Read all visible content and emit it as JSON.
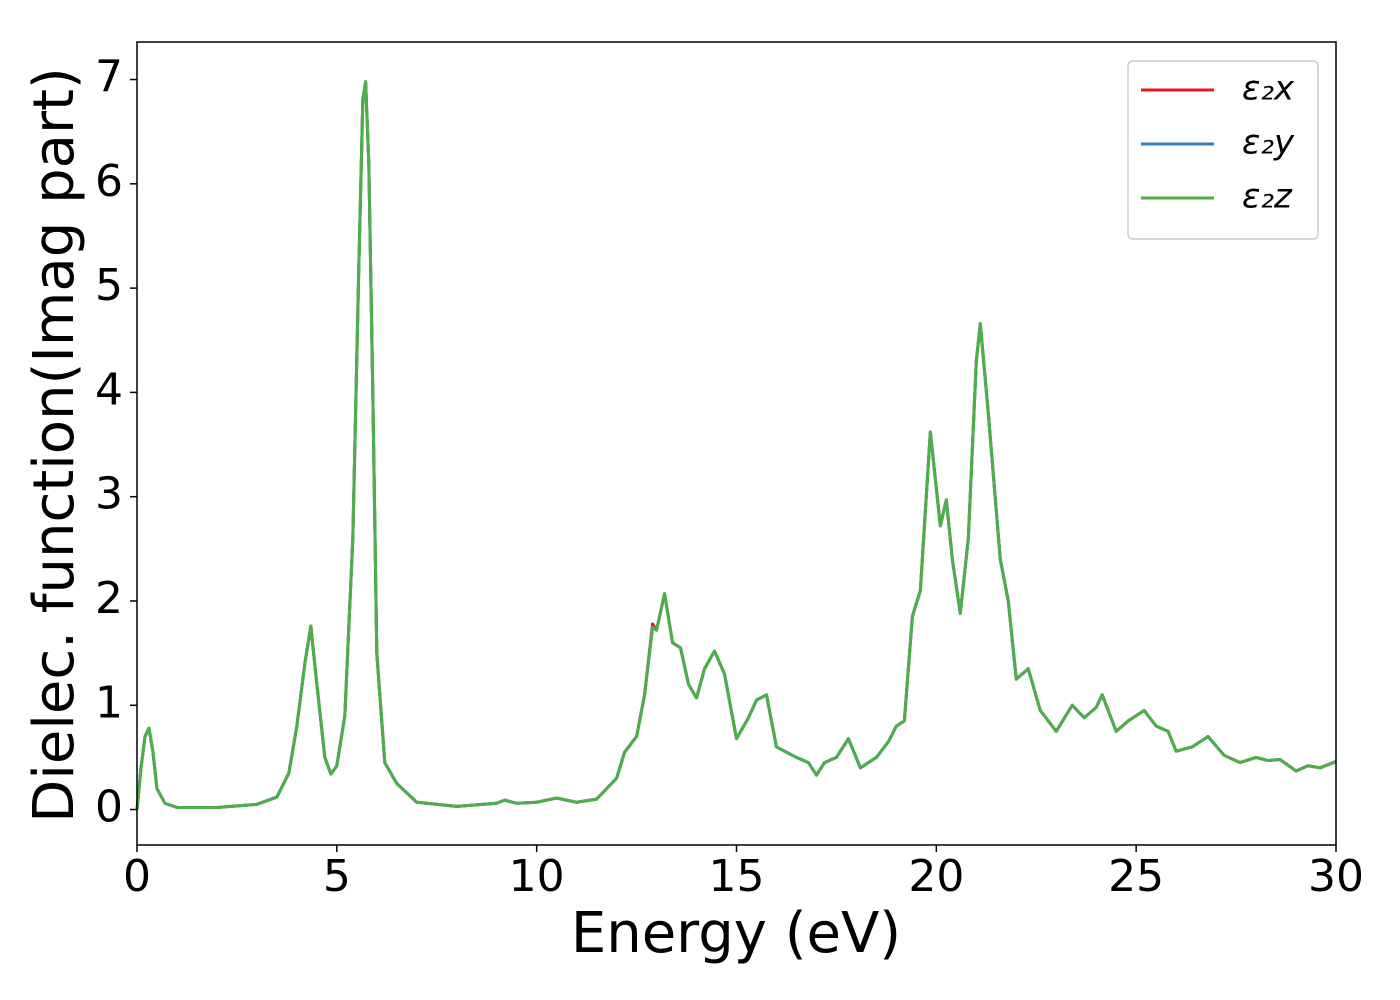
{
  "chart_data": {
    "type": "line",
    "xlabel": "Energy (eV)",
    "ylabel": "Dielec. function(Imag part)",
    "x": [
      0,
      0.1,
      0.2,
      0.3,
      0.4,
      0.5,
      0.7,
      1,
      2,
      3,
      3.5,
      3.8,
      4.0,
      4.2,
      4.35,
      4.5,
      4.7,
      4.85,
      5.0,
      5.2,
      5.4,
      5.55,
      5.65,
      5.72,
      5.8,
      5.9,
      6.0,
      6.2,
      6.5,
      7,
      8,
      9,
      9.2,
      9.5,
      10,
      10.5,
      11,
      11.5,
      12,
      12.2,
      12.5,
      12.7,
      12.9,
      13.0,
      13.2,
      13.4,
      13.6,
      13.8,
      14.0,
      14.2,
      14.45,
      14.7,
      15.0,
      15.3,
      15.5,
      15.75,
      16,
      16.5,
      16.8,
      17.0,
      17.2,
      17.5,
      17.8,
      18.1,
      18.5,
      18.8,
      19.0,
      19.2,
      19.4,
      19.6,
      19.85,
      20.1,
      20.25,
      20.4,
      20.6,
      20.8,
      21.0,
      21.1,
      21.3,
      21.6,
      21.8,
      22.0,
      22.3,
      22.6,
      23.0,
      23.4,
      23.7,
      24.0,
      24.15,
      24.5,
      24.8,
      25.2,
      25.5,
      25.8,
      26.0,
      26.4,
      26.8,
      27.2,
      27.6,
      28.0,
      28.3,
      28.6,
      29.0,
      29.3,
      29.6,
      30
    ],
    "series": [
      {
        "name": "ε₂x",
        "color": "#e41a1c",
        "values": [
          0,
          0.4,
          0.7,
          0.78,
          0.55,
          0.2,
          0.06,
          0.02,
          0.02,
          0.05,
          0.12,
          0.35,
          0.8,
          1.4,
          1.76,
          1.2,
          0.5,
          0.34,
          0.42,
          0.9,
          2.6,
          5.2,
          6.8,
          6.98,
          6.2,
          4.0,
          1.5,
          0.45,
          0.25,
          0.07,
          0.03,
          0.06,
          0.09,
          0.06,
          0.07,
          0.11,
          0.07,
          0.1,
          0.3,
          0.55,
          0.7,
          1.1,
          1.78,
          1.72,
          2.07,
          1.6,
          1.55,
          1.2,
          1.07,
          1.35,
          1.52,
          1.3,
          0.68,
          0.88,
          1.05,
          1.1,
          0.6,
          0.5,
          0.45,
          0.33,
          0.45,
          0.5,
          0.68,
          0.4,
          0.5,
          0.65,
          0.8,
          0.85,
          1.85,
          2.1,
          3.62,
          2.72,
          2.97,
          2.4,
          1.88,
          2.6,
          4.3,
          4.66,
          3.8,
          2.4,
          2.0,
          1.25,
          1.35,
          0.95,
          0.75,
          1.0,
          0.88,
          0.98,
          1.1,
          0.75,
          0.85,
          0.95,
          0.8,
          0.75,
          0.56,
          0.6,
          0.7,
          0.52,
          0.45,
          0.5,
          0.47,
          0.48,
          0.37,
          0.42,
          0.4,
          0.46
        ]
      },
      {
        "name": "ε₂y",
        "color": "#377eb8",
        "values": [
          0,
          0.4,
          0.7,
          0.78,
          0.55,
          0.2,
          0.06,
          0.02,
          0.02,
          0.05,
          0.12,
          0.35,
          0.8,
          1.4,
          1.76,
          1.2,
          0.5,
          0.34,
          0.42,
          0.9,
          2.6,
          5.2,
          6.8,
          6.98,
          6.2,
          4.0,
          1.5,
          0.45,
          0.25,
          0.07,
          0.03,
          0.06,
          0.09,
          0.06,
          0.07,
          0.11,
          0.07,
          0.1,
          0.3,
          0.55,
          0.7,
          1.1,
          1.75,
          1.72,
          2.07,
          1.6,
          1.55,
          1.2,
          1.07,
          1.35,
          1.52,
          1.3,
          0.68,
          0.88,
          1.05,
          1.1,
          0.6,
          0.5,
          0.45,
          0.33,
          0.45,
          0.5,
          0.68,
          0.4,
          0.5,
          0.65,
          0.8,
          0.85,
          1.85,
          2.1,
          3.62,
          2.72,
          2.97,
          2.4,
          1.88,
          2.6,
          4.3,
          4.66,
          3.8,
          2.4,
          2.0,
          1.25,
          1.35,
          0.95,
          0.75,
          1.0,
          0.88,
          0.98,
          1.1,
          0.75,
          0.85,
          0.95,
          0.8,
          0.75,
          0.56,
          0.6,
          0.7,
          0.52,
          0.45,
          0.5,
          0.47,
          0.48,
          0.37,
          0.42,
          0.4,
          0.46
        ]
      },
      {
        "name": "ε₂z",
        "color": "#4daf4a",
        "values": [
          0,
          0.4,
          0.7,
          0.78,
          0.55,
          0.2,
          0.06,
          0.02,
          0.02,
          0.05,
          0.12,
          0.35,
          0.8,
          1.4,
          1.76,
          1.2,
          0.5,
          0.34,
          0.42,
          0.9,
          2.6,
          5.2,
          6.8,
          6.98,
          6.2,
          4.0,
          1.5,
          0.45,
          0.25,
          0.07,
          0.03,
          0.06,
          0.09,
          0.06,
          0.07,
          0.11,
          0.07,
          0.1,
          0.3,
          0.55,
          0.7,
          1.1,
          1.75,
          1.72,
          2.07,
          1.6,
          1.55,
          1.2,
          1.07,
          1.35,
          1.52,
          1.3,
          0.68,
          0.88,
          1.05,
          1.1,
          0.6,
          0.5,
          0.45,
          0.33,
          0.45,
          0.5,
          0.68,
          0.4,
          0.5,
          0.65,
          0.8,
          0.85,
          1.85,
          2.1,
          3.62,
          2.72,
          2.97,
          2.4,
          1.88,
          2.6,
          4.3,
          4.66,
          3.8,
          2.4,
          2.0,
          1.25,
          1.35,
          0.95,
          0.75,
          1.0,
          0.88,
          0.98,
          1.1,
          0.75,
          0.85,
          0.95,
          0.8,
          0.75,
          0.56,
          0.6,
          0.7,
          0.52,
          0.45,
          0.5,
          0.47,
          0.48,
          0.37,
          0.42,
          0.4,
          0.46
        ]
      }
    ],
    "xlim": [
      0,
      30
    ],
    "xticks": [
      0,
      5,
      10,
      15,
      20,
      25,
      30
    ],
    "ylim": [
      -0.34,
      7.36
    ],
    "yticks": [
      0,
      1,
      2,
      3,
      4,
      5,
      6,
      7
    ],
    "grid": false,
    "legend": "upper right"
  }
}
